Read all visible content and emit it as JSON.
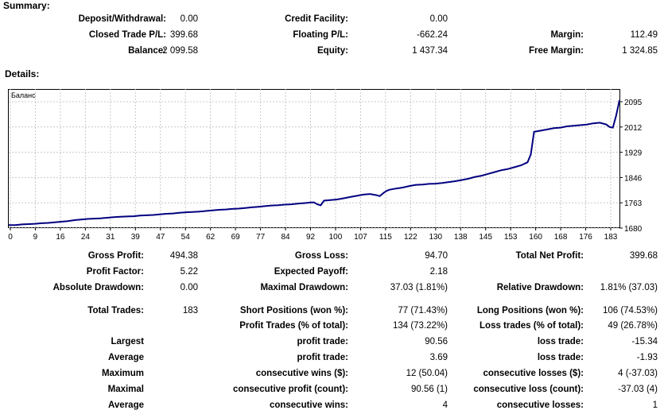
{
  "summary": {
    "title": "Summary:",
    "deposit_label": "Deposit/Withdrawal:",
    "deposit_value": "0.00",
    "credit_label": "Credit Facility:",
    "credit_value": "0.00",
    "closed_pl_label": "Closed Trade P/L:",
    "closed_pl_value": "399.68",
    "floating_pl_label": "Floating P/L:",
    "floating_pl_value": "-662.24",
    "margin_label": "Margin:",
    "margin_value": "112.49",
    "balance_label": "Balance:",
    "balance_value": "2 099.58",
    "equity_label": "Equity:",
    "equity_value": "1 437.34",
    "free_margin_label": "Free Margin:",
    "free_margin_value": "1 324.85"
  },
  "details": {
    "title": "Details:"
  },
  "chart_data": {
    "type": "line",
    "legend": "Баланс",
    "series": [
      {
        "name": "Баланс",
        "color": "#000080"
      }
    ],
    "x_ticks": [
      "0",
      "9",
      "16",
      "24",
      "31",
      "39",
      "47",
      "54",
      "62",
      "69",
      "77",
      "84",
      "92",
      "100",
      "107",
      "115",
      "122",
      "130",
      "138",
      "145",
      "153",
      "160",
      "168",
      "176",
      "183"
    ],
    "y_ticks": [
      "2095",
      "2012",
      "1929",
      "1846",
      "1763",
      "1680"
    ],
    "ylim": [
      1680,
      2095
    ],
    "xlim": [
      0,
      186
    ],
    "grid": true,
    "x": [
      0,
      2,
      4,
      6,
      8,
      10,
      12,
      14,
      16,
      18,
      20,
      22,
      24,
      26,
      28,
      30,
      32,
      34,
      36,
      38,
      40,
      42,
      44,
      46,
      48,
      50,
      52,
      54,
      56,
      58,
      60,
      62,
      64,
      66,
      68,
      70,
      72,
      74,
      76,
      78,
      80,
      82,
      84,
      86,
      88,
      90,
      92,
      93,
      94,
      95,
      96,
      98,
      100,
      102,
      104,
      106,
      108,
      110,
      112,
      113,
      114,
      115,
      116,
      118,
      120,
      122,
      124,
      126,
      128,
      130,
      132,
      134,
      136,
      138,
      140,
      142,
      144,
      146,
      148,
      150,
      152,
      154,
      156,
      158,
      159,
      160,
      162,
      164,
      166,
      168,
      170,
      172,
      174,
      176,
      178,
      180,
      182,
      183,
      184,
      185,
      186
    ],
    "y": [
      1690,
      1690,
      1692,
      1693,
      1694,
      1696,
      1697,
      1699,
      1701,
      1703,
      1706,
      1708,
      1710,
      1711,
      1712,
      1714,
      1716,
      1717,
      1718,
      1719,
      1721,
      1722,
      1723,
      1725,
      1727,
      1728,
      1730,
      1732,
      1733,
      1734,
      1736,
      1738,
      1740,
      1741,
      1743,
      1744,
      1746,
      1748,
      1750,
      1752,
      1754,
      1755,
      1757,
      1758,
      1760,
      1762,
      1764,
      1764,
      1758,
      1755,
      1770,
      1772,
      1774,
      1778,
      1782,
      1786,
      1790,
      1792,
      1788,
      1785,
      1794,
      1802,
      1806,
      1810,
      1813,
      1818,
      1822,
      1823,
      1825,
      1826,
      1828,
      1831,
      1834,
      1838,
      1842,
      1848,
      1852,
      1858,
      1864,
      1870,
      1874,
      1880,
      1886,
      1896,
      1922,
      1996,
      2000,
      2004,
      2008,
      2010,
      2014,
      2016,
      2018,
      2020,
      2024,
      2026,
      2020,
      2012,
      2010,
      2050,
      2100
    ]
  },
  "stats": {
    "gross_profit_label": "Gross Profit:",
    "gross_profit_value": "494.38",
    "gross_loss_label": "Gross Loss:",
    "gross_loss_value": "94.70",
    "total_net_profit_label": "Total Net Profit:",
    "total_net_profit_value": "399.68",
    "profit_factor_label": "Profit Factor:",
    "profit_factor_value": "5.22",
    "expected_payoff_label": "Expected Payoff:",
    "expected_payoff_value": "2.18",
    "absolute_drawdown_label": "Absolute Drawdown:",
    "absolute_drawdown_value": "0.00",
    "maximal_drawdown_label": "Maximal Drawdown:",
    "maximal_drawdown_value": "37.03 (1.81%)",
    "relative_drawdown_label": "Relative Drawdown:",
    "relative_drawdown_value": "1.81% (37.03)",
    "total_trades_label": "Total Trades:",
    "total_trades_value": "183",
    "short_positions_label": "Short Positions (won %):",
    "short_positions_value": "77 (71.43%)",
    "long_positions_label": "Long Positions (won %):",
    "long_positions_value": "106 (74.53%)",
    "profit_trades_label": "Profit Trades (% of total):",
    "profit_trades_value": "134 (73.22%)",
    "loss_trades_label": "Loss trades (% of total):",
    "loss_trades_value": "49 (26.78%)",
    "largest_label": "Largest",
    "largest_profit_label": "profit trade:",
    "largest_profit_value": "90.56",
    "largest_loss_label": "loss trade:",
    "largest_loss_value": "-15.34",
    "average_label": "Average",
    "average_profit_label": "profit trade:",
    "average_profit_value": "3.69",
    "average_loss_label": "loss trade:",
    "average_loss_value": "-1.93",
    "maximum_label": "Maximum",
    "max_cons_wins_label": "consecutive wins ($):",
    "max_cons_wins_value": "12 (50.04)",
    "max_cons_losses_label": "consecutive losses ($):",
    "max_cons_losses_value": "4 (-37.03)",
    "maximal_label": "Maximal",
    "maximal_cons_profit_label": "consecutive profit (count):",
    "maximal_cons_profit_value": "90.56 (1)",
    "maximal_cons_loss_label": "consecutive loss (count):",
    "maximal_cons_loss_value": "-37.03 (4)",
    "average2_label": "Average",
    "avg_cons_wins_label": "consecutive wins:",
    "avg_cons_wins_value": "4",
    "avg_cons_losses_label": "consecutive losses:",
    "avg_cons_losses_value": "1"
  }
}
